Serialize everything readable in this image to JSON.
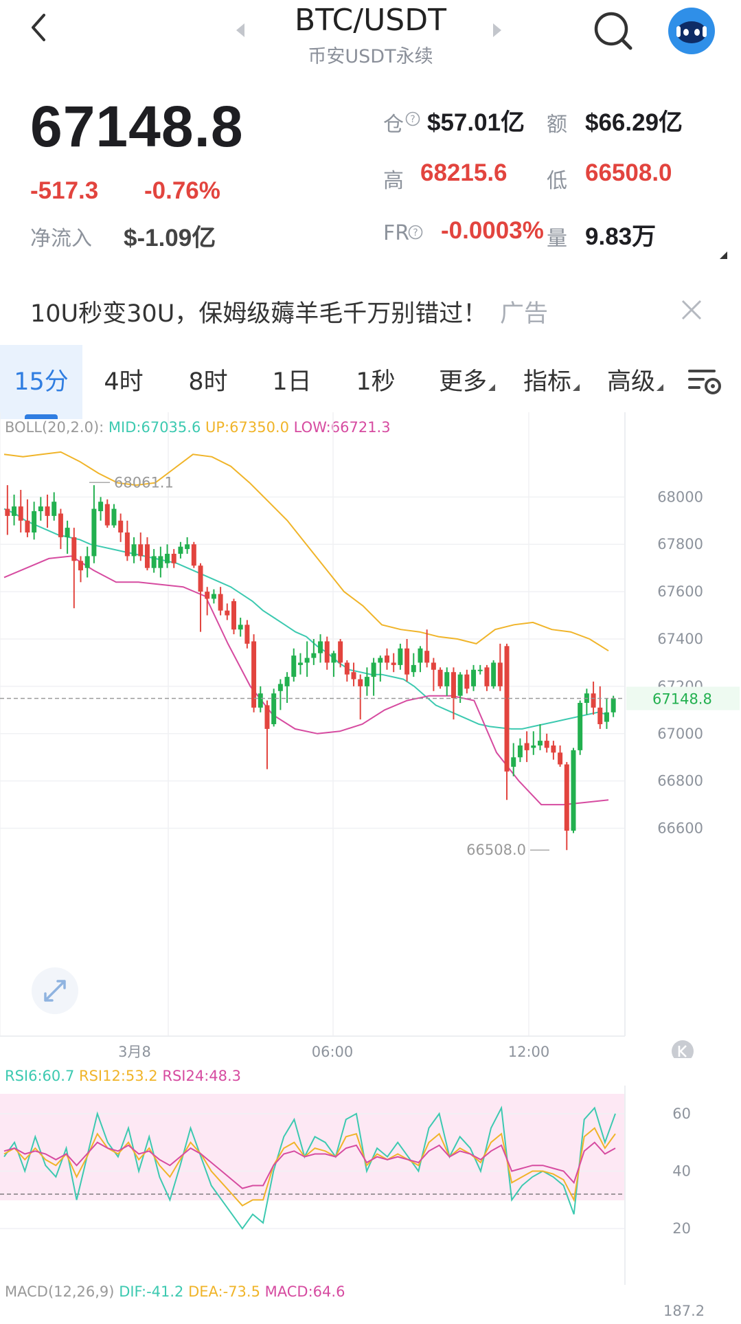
{
  "header": {
    "pair": "BTC/USDT",
    "exchange": "币安USDT永续",
    "icons": [
      "back-icon",
      "search-icon",
      "avatar-robot-icon"
    ]
  },
  "stats": {
    "price": "67148.8",
    "change": "-517.3",
    "change_pct": "-0.76%",
    "net_inflow_label": "净流入",
    "net_inflow_value": "$-1.09亿",
    "oi_label": "仓",
    "oi_value": "$57.01亿",
    "amount_label": "额",
    "amount_value": "$66.29亿",
    "high_label": "高",
    "high_value": "68215.6",
    "low_label": "低",
    "low_value": "66508.0",
    "fr_label": "FR",
    "fr_value": "-0.0003%",
    "vol_label": "量",
    "vol_value": "9.83万"
  },
  "ad": {
    "text": "10U秒变30U，保姆级薅羊毛千万别错过！",
    "tag": "广告"
  },
  "tabs": [
    {
      "label": "15分",
      "active": true
    },
    {
      "label": "4时"
    },
    {
      "label": "8时"
    },
    {
      "label": "1日"
    },
    {
      "label": "1秒"
    },
    {
      "label": "更多"
    },
    {
      "label": "指标"
    },
    {
      "label": "高级"
    }
  ],
  "boll": {
    "label": "BOLL(20,2.0):",
    "mid": "MID:67035.6",
    "up": "UP:67350.0",
    "low": "LOW:66721.3"
  },
  "rsi": {
    "r6": "RSI6:60.7",
    "r12": "RSI12:53.2",
    "r24": "RSI24:48.3"
  },
  "macd": {
    "label": "MACD(12,26,9)",
    "dif": "DIF:-41.2",
    "dea": "DEA:-73.5",
    "macd": "MACD:64.6",
    "axis_top": "187.2"
  },
  "colors": {
    "up": "#22b04f",
    "down": "#e2443e",
    "mid": "#3cc9b0",
    "upper": "#f0b429",
    "lower": "#d64ba0",
    "accent": "#2f7de1"
  },
  "chart_data": [
    {
      "type": "candlestick",
      "title": "BTC/USDT 15分",
      "ylim": [
        66500,
        68300
      ],
      "y_ticks": [
        68000,
        67800,
        67600,
        67400,
        67200,
        67000,
        66800,
        66600
      ],
      "x_tick_labels": [
        "3月8",
        "06:00",
        "12:00"
      ],
      "current_price": "67148.8",
      "max_label": "68061.1",
      "min_label": "66508.0",
      "candles": [
        {
          "o": 67950,
          "c": 67920,
          "h": 68050,
          "l": 67840
        },
        {
          "o": 67920,
          "c": 67960,
          "h": 68010,
          "l": 67880
        },
        {
          "o": 67960,
          "c": 67900,
          "h": 68030,
          "l": 67850
        },
        {
          "o": 67900,
          "c": 67850,
          "h": 67990,
          "l": 67830
        },
        {
          "o": 67850,
          "c": 67940,
          "h": 67980,
          "l": 67820
        },
        {
          "o": 67940,
          "c": 67960,
          "h": 68000,
          "l": 67900
        },
        {
          "o": 67960,
          "c": 67920,
          "h": 68010,
          "l": 67870
        },
        {
          "o": 67920,
          "c": 67980,
          "h": 68020,
          "l": 67900
        },
        {
          "o": 67930,
          "c": 67830,
          "h": 67950,
          "l": 67780
        },
        {
          "o": 67830,
          "c": 67870,
          "h": 67900,
          "l": 67760
        },
        {
          "o": 67830,
          "c": 67730,
          "h": 67870,
          "l": 67530
        },
        {
          "o": 67730,
          "c": 67690,
          "h": 67750,
          "l": 67640
        },
        {
          "o": 67700,
          "c": 67750,
          "h": 67790,
          "l": 67660
        },
        {
          "o": 67750,
          "c": 67950,
          "h": 68050,
          "l": 67720
        },
        {
          "o": 67940,
          "c": 67980,
          "h": 68000,
          "l": 67900
        },
        {
          "o": 67970,
          "c": 67880,
          "h": 67990,
          "l": 67870
        },
        {
          "o": 67880,
          "c": 67950,
          "h": 67970,
          "l": 67870
        },
        {
          "o": 67900,
          "c": 67850,
          "h": 67930,
          "l": 67810
        },
        {
          "o": 67850,
          "c": 67750,
          "h": 67900,
          "l": 67730
        },
        {
          "o": 67750,
          "c": 67800,
          "h": 67830,
          "l": 67720
        },
        {
          "o": 67800,
          "c": 67750,
          "h": 67850,
          "l": 67730
        },
        {
          "o": 67800,
          "c": 67700,
          "h": 67830,
          "l": 67690
        },
        {
          "o": 67700,
          "c": 67750,
          "h": 67780,
          "l": 67680
        },
        {
          "o": 67700,
          "c": 67750,
          "h": 67790,
          "l": 67660
        },
        {
          "o": 67720,
          "c": 67760,
          "h": 67800,
          "l": 67700
        },
        {
          "o": 67760,
          "c": 67720,
          "h": 67780,
          "l": 67700
        },
        {
          "o": 67760,
          "c": 67790,
          "h": 67810,
          "l": 67740
        },
        {
          "o": 67780,
          "c": 67800,
          "h": 67830,
          "l": 67760
        },
        {
          "o": 67800,
          "c": 67710,
          "h": 67810,
          "l": 67700
        },
        {
          "o": 67710,
          "c": 67600,
          "h": 67720,
          "l": 67430
        },
        {
          "o": 67600,
          "c": 67570,
          "h": 67620,
          "l": 67500
        },
        {
          "o": 67570,
          "c": 67590,
          "h": 67610,
          "l": 67550
        },
        {
          "o": 67590,
          "c": 67520,
          "h": 67620,
          "l": 67500
        },
        {
          "o": 67520,
          "c": 67500,
          "h": 67550,
          "l": 67480
        },
        {
          "o": 67560,
          "c": 67440,
          "h": 67570,
          "l": 67420
        },
        {
          "o": 67440,
          "c": 67460,
          "h": 67490,
          "l": 67410
        },
        {
          "o": 67460,
          "c": 67380,
          "h": 67480,
          "l": 67360
        },
        {
          "o": 67390,
          "c": 67110,
          "h": 67420,
          "l": 67090
        },
        {
          "o": 67110,
          "c": 67170,
          "h": 67200,
          "l": 67090
        },
        {
          "o": 67120,
          "c": 67020,
          "h": 67140,
          "l": 66850
        },
        {
          "o": 67040,
          "c": 67170,
          "h": 67190,
          "l": 67030
        },
        {
          "o": 67180,
          "c": 67210,
          "h": 67230,
          "l": 67100
        },
        {
          "o": 67200,
          "c": 67240,
          "h": 67260,
          "l": 67130
        },
        {
          "o": 67240,
          "c": 67330,
          "h": 67360,
          "l": 67220
        },
        {
          "o": 67290,
          "c": 67300,
          "h": 67340,
          "l": 67250
        },
        {
          "o": 67300,
          "c": 67320,
          "h": 67390,
          "l": 67240
        },
        {
          "o": 67320,
          "c": 67340,
          "h": 67400,
          "l": 67290
        },
        {
          "o": 67340,
          "c": 67390,
          "h": 67420,
          "l": 67300
        },
        {
          "o": 67390,
          "c": 67300,
          "h": 67410,
          "l": 67270
        },
        {
          "o": 67300,
          "c": 67340,
          "h": 67350,
          "l": 67240
        },
        {
          "o": 67390,
          "c": 67300,
          "h": 67400,
          "l": 67280
        },
        {
          "o": 67300,
          "c": 67250,
          "h": 67310,
          "l": 67220
        },
        {
          "o": 67260,
          "c": 67230,
          "h": 67300,
          "l": 67200
        },
        {
          "o": 67230,
          "c": 67200,
          "h": 67250,
          "l": 67060
        },
        {
          "o": 67200,
          "c": 67240,
          "h": 67280,
          "l": 67160
        },
        {
          "o": 67240,
          "c": 67300,
          "h": 67320,
          "l": 67160
        },
        {
          "o": 67300,
          "c": 67320,
          "h": 67330,
          "l": 67220
        },
        {
          "o": 67330,
          "c": 67300,
          "h": 67360,
          "l": 67270
        },
        {
          "o": 67300,
          "c": 67290,
          "h": 67340,
          "l": 67260
        },
        {
          "o": 67290,
          "c": 67360,
          "h": 67380,
          "l": 67270
        },
        {
          "o": 67360,
          "c": 67250,
          "h": 67400,
          "l": 67220
        },
        {
          "o": 67260,
          "c": 67290,
          "h": 67340,
          "l": 67240
        },
        {
          "o": 67300,
          "c": 67360,
          "h": 67370,
          "l": 67260
        },
        {
          "o": 67350,
          "c": 67300,
          "h": 67440,
          "l": 67280
        },
        {
          "o": 67300,
          "c": 67270,
          "h": 67320,
          "l": 67180
        },
        {
          "o": 67270,
          "c": 67200,
          "h": 67280,
          "l": 67190
        },
        {
          "o": 67200,
          "c": 67260,
          "h": 67280,
          "l": 67160
        },
        {
          "o": 67260,
          "c": 67150,
          "h": 67280,
          "l": 67060
        },
        {
          "o": 67160,
          "c": 67250,
          "h": 67260,
          "l": 67130
        },
        {
          "o": 67250,
          "c": 67190,
          "h": 67270,
          "l": 67170
        },
        {
          "o": 67200,
          "c": 67270,
          "h": 67290,
          "l": 67180
        },
        {
          "o": 67270,
          "c": 67270,
          "h": 67290,
          "l": 67250
        },
        {
          "o": 67280,
          "c": 67200,
          "h": 67290,
          "l": 67180
        },
        {
          "o": 67200,
          "c": 67300,
          "h": 67310,
          "l": 67190
        },
        {
          "o": 67300,
          "c": 67200,
          "h": 67380,
          "l": 67180
        },
        {
          "o": 67370,
          "c": 66840,
          "h": 67380,
          "l": 66720
        },
        {
          "o": 66860,
          "c": 66900,
          "h": 66960,
          "l": 66820
        },
        {
          "o": 66900,
          "c": 66950,
          "h": 66980,
          "l": 66880
        },
        {
          "o": 66960,
          "c": 66930,
          "h": 67010,
          "l": 66880
        },
        {
          "o": 66940,
          "c": 66950,
          "h": 67010,
          "l": 66910
        },
        {
          "o": 66950,
          "c": 66970,
          "h": 67040,
          "l": 66930
        },
        {
          "o": 66970,
          "c": 66940,
          "h": 67000,
          "l": 66920
        },
        {
          "o": 66950,
          "c": 66920,
          "h": 66970,
          "l": 66890
        },
        {
          "o": 66920,
          "c": 66870,
          "h": 66950,
          "l": 66860
        },
        {
          "o": 66870,
          "c": 66590,
          "h": 66880,
          "l": 66508
        },
        {
          "o": 66590,
          "c": 66930,
          "h": 66940,
          "l": 66580
        },
        {
          "o": 66930,
          "c": 67130,
          "h": 67140,
          "l": 66910
        },
        {
          "o": 67130,
          "c": 67170,
          "h": 67190,
          "l": 67080
        },
        {
          "o": 67170,
          "c": 67110,
          "h": 67220,
          "l": 67080
        },
        {
          "o": 67110,
          "c": 67040,
          "h": 67200,
          "l": 67020
        },
        {
          "o": 67050,
          "c": 67090,
          "h": 67150,
          "l": 67020
        },
        {
          "o": 67090,
          "c": 67149,
          "h": 67160,
          "l": 67070
        }
      ],
      "series": [
        {
          "name": "MID",
          "values": [
            67950,
            67930,
            67900,
            67880,
            67860,
            67840,
            67830,
            67820,
            67800,
            67790,
            67780,
            67770,
            67760,
            67750,
            67740,
            67730,
            67720,
            67700,
            67680,
            67660,
            67640,
            67620,
            67590,
            67560,
            67520,
            67490,
            67460,
            67430,
            67410,
            67370,
            67340,
            67300,
            67270,
            67260,
            67250,
            67250,
            67240,
            67230,
            67200,
            67160,
            67120,
            67100,
            67080,
            67060,
            67040,
            67030,
            67025,
            67020,
            67020,
            67030,
            67040,
            67050,
            67060,
            67070,
            67080,
            67090,
            67080
          ]
        },
        {
          "name": "UP",
          "values": [
            68180,
            68170,
            68180,
            68190,
            68150,
            68100,
            68060,
            68050,
            68060,
            68120,
            68180,
            68170,
            68130,
            68060,
            67980,
            67900,
            67800,
            67700,
            67600,
            67540,
            67460,
            67440,
            67430,
            67410,
            67400,
            67380,
            67440,
            67460,
            67470,
            67440,
            67430,
            67400,
            67350
          ]
        },
        {
          "name": "LOW",
          "values": [
            67660,
            67700,
            67740,
            67750,
            67690,
            67640,
            67640,
            67630,
            67620,
            67580,
            67380,
            67200,
            67080,
            67020,
            67000,
            67010,
            67040,
            67100,
            67140,
            67160,
            67160,
            67140,
            66920,
            66800,
            66700,
            66700,
            66710,
            66720
          ]
        }
      ]
    },
    {
      "type": "line",
      "title": "RSI",
      "ylim": [
        10,
        65
      ],
      "y_ticks": [
        60,
        40,
        20
      ],
      "series": [
        {
          "name": "RSI6",
          "values": [
            45,
            50,
            40,
            52,
            42,
            38,
            48,
            30,
            45,
            60,
            50,
            45,
            55,
            40,
            52,
            38,
            30,
            42,
            55,
            45,
            35,
            30,
            25,
            20,
            25,
            22,
            40,
            52,
            58,
            45,
            52,
            50,
            45,
            58,
            60,
            40,
            48,
            45,
            50,
            45,
            40,
            55,
            60,
            45,
            52,
            48,
            40,
            55,
            62,
            30,
            35,
            38,
            40,
            38,
            35,
            25,
            58,
            62,
            50,
            60
          ]
        },
        {
          "name": "RSI12",
          "values": [
            46,
            48,
            44,
            48,
            44,
            42,
            46,
            38,
            45,
            53,
            48,
            46,
            50,
            44,
            48,
            42,
            38,
            44,
            50,
            46,
            40,
            36,
            32,
            28,
            30,
            30,
            42,
            48,
            50,
            45,
            48,
            47,
            45,
            52,
            53,
            42,
            46,
            44,
            46,
            44,
            42,
            50,
            53,
            45,
            48,
            46,
            43,
            50,
            53,
            36,
            38,
            40,
            40,
            39,
            37,
            30,
            52,
            55,
            48,
            53
          ]
        },
        {
          "name": "RSI24",
          "values": [
            47,
            48,
            46,
            47,
            46,
            44,
            46,
            42,
            46,
            50,
            48,
            47,
            49,
            46,
            47,
            44,
            42,
            45,
            48,
            46,
            43,
            40,
            37,
            34,
            35,
            35,
            42,
            46,
            47,
            45,
            46,
            46,
            45,
            48,
            49,
            43,
            45,
            44,
            45,
            44,
            43,
            47,
            49,
            45,
            47,
            46,
            44,
            47,
            49,
            40,
            41,
            42,
            42,
            41,
            40,
            36,
            47,
            50,
            46,
            48
          ]
        }
      ]
    }
  ]
}
